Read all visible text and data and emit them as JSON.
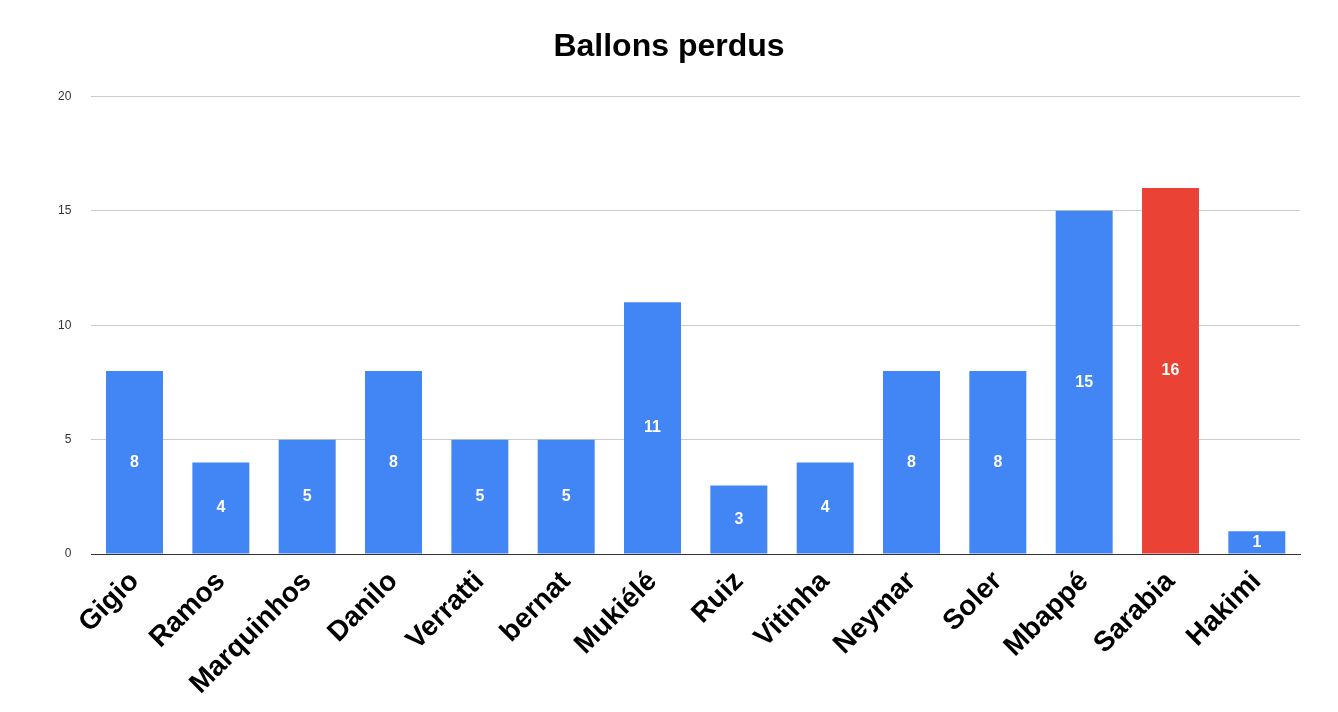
{
  "chart_data": {
    "type": "bar",
    "title": "Ballons perdus",
    "categories": [
      "Gigio",
      "Ramos",
      "Marquinhos",
      "Danilo",
      "Verratti",
      "bernat",
      "Mukiélé",
      "Ruiz",
      "Vitinha",
      "Neymar",
      "Soler",
      "Mbappé",
      "Sarabia",
      "Hakimi"
    ],
    "values": [
      8,
      4,
      5,
      8,
      5,
      5,
      11,
      3,
      4,
      8,
      8,
      15,
      16,
      1
    ],
    "colors": [
      "#4285f4",
      "#4285f4",
      "#4285f4",
      "#4285f4",
      "#4285f4",
      "#4285f4",
      "#4285f4",
      "#4285f4",
      "#4285f4",
      "#4285f4",
      "#4285f4",
      "#4285f4",
      "#ea4335",
      "#4285f4"
    ],
    "ylim": [
      0,
      20
    ],
    "yticks": [
      0,
      5,
      10,
      15,
      20
    ],
    "grid": "y",
    "data_labels": true
  }
}
